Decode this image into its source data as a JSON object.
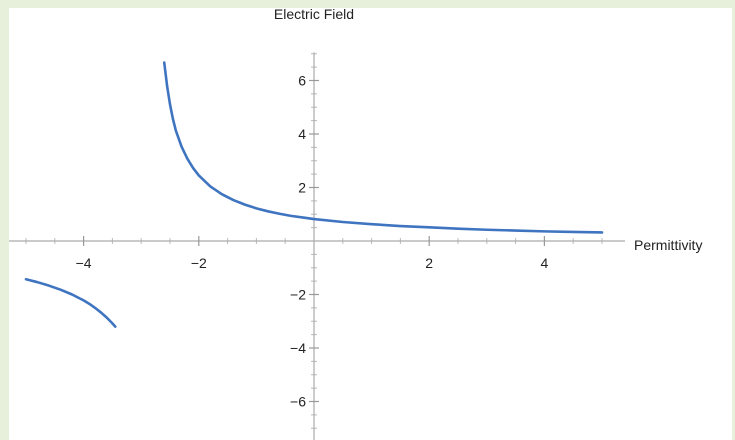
{
  "chart_data": {
    "type": "line",
    "title": "",
    "xlabel": "Permittivity",
    "ylabel": "Electric Field",
    "xlim": [
      -5.2,
      5.2
    ],
    "ylim": [
      -7.5,
      7.2
    ],
    "x_ticks": [
      -4,
      -2,
      2,
      4
    ],
    "y_ticks": [
      -6,
      -4,
      -2,
      2,
      4,
      6
    ],
    "x_tick_labels": [
      "−4",
      "−2",
      "2",
      "4"
    ],
    "y_tick_labels": [
      "−6",
      "−4",
      "−2",
      "2",
      "4",
      "6"
    ],
    "grid": false,
    "legend": "none",
    "line_color": "#3f74c0",
    "series": [
      {
        "segments": [
          {
            "x": [
              -5.0,
              -4.8,
              -4.6,
              -4.4,
              -4.2,
              -4.0,
              -3.9,
              -3.8,
              -3.7,
              -3.6,
              -3.5,
              -3.45
            ],
            "y": [
              -1.43,
              -1.54,
              -1.67,
              -1.82,
              -2.0,
              -2.22,
              -2.35,
              -2.5,
              -2.67,
              -2.86,
              -3.08,
              -3.2
            ]
          },
          {
            "x": [
              -2.6,
              -2.55,
              -2.5,
              -2.45,
              -2.4,
              -2.3,
              -2.2,
              -2.1,
              -2.0,
              -1.8,
              -1.6,
              -1.4,
              -1.2,
              -1.0,
              -0.8,
              -0.6,
              -0.4,
              -0.2,
              0.0,
              0.5,
              1.0,
              1.5,
              2.0,
              2.5,
              3.0,
              3.5,
              4.0,
              4.5,
              5.0
            ],
            "y": [
              6.67,
              5.79,
              5.11,
              4.57,
              4.14,
              3.53,
              3.08,
              2.73,
              2.45,
              2.04,
              1.75,
              1.53,
              1.36,
              1.22,
              1.11,
              1.02,
              0.94,
              0.88,
              0.82,
              0.71,
              0.63,
              0.56,
              0.51,
              0.46,
              0.42,
              0.39,
              0.36,
              0.34,
              0.32
            ]
          }
        ]
      }
    ]
  }
}
